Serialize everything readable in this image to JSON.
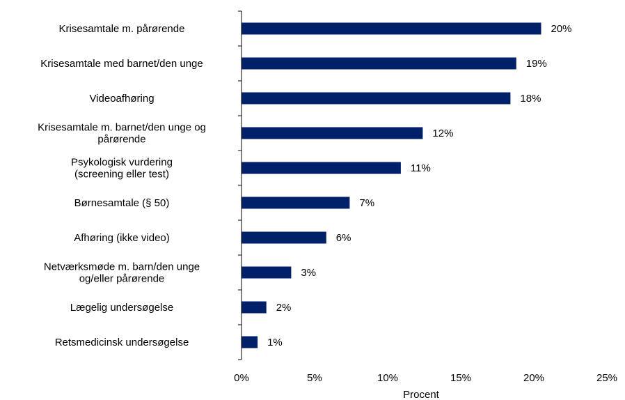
{
  "chart_data": {
    "type": "bar",
    "orientation": "horizontal",
    "title": "",
    "xlabel": "Procent",
    "ylabel": "",
    "categories": [
      [
        "Krisesamtale m. pårørende"
      ],
      [
        "Krisesamtale med barnet/den unge"
      ],
      [
        "Videoafhøring"
      ],
      [
        "Krisesamtale m. barnet/den unge og",
        "pårørende"
      ],
      [
        "Psykologisk vurdering",
        "(screening eller test)"
      ],
      [
        "Børnesamtale (§ 50)"
      ],
      [
        "Afhøring (ikke video)"
      ],
      [
        "Netværksmøde m. barn/den unge",
        "og/eller pårørende"
      ],
      [
        "Lægelig undersøgelse"
      ],
      [
        "Retsmedicinsk undersøgelse"
      ]
    ],
    "values": [
      20.5,
      18.8,
      18.4,
      12.4,
      10.9,
      7.4,
      5.8,
      3.4,
      1.7,
      1.1
    ],
    "data_labels": [
      "20%",
      "19%",
      "18%",
      "12%",
      "11%",
      "7%",
      "6%",
      "3%",
      "2%",
      "1%"
    ],
    "xlim": [
      0,
      25
    ],
    "x_ticks": [
      "0%",
      "5%",
      "10%",
      "15%",
      "20%",
      "25%"
    ],
    "grid": false,
    "bar_color": "#002169"
  }
}
